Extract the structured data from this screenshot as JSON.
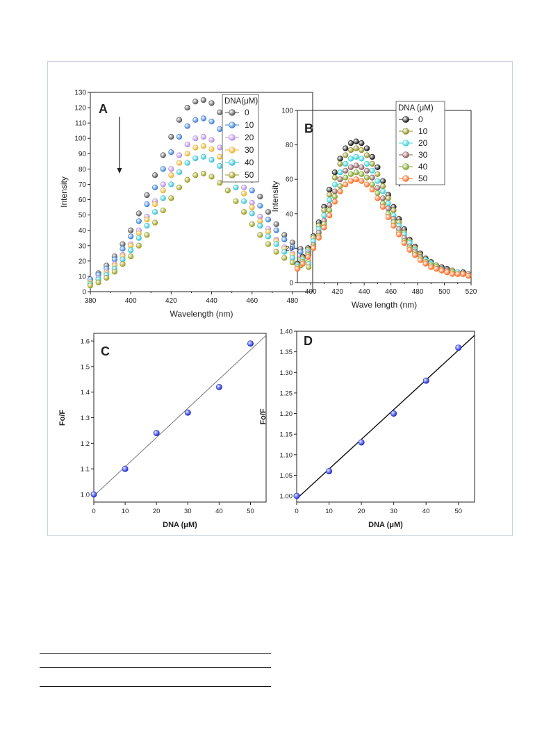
{
  "chart_data": [
    {
      "type": "scatter",
      "panel_label": "A",
      "xlabel": "Wavelength (nm)",
      "ylabel": "Intensity",
      "xlim": [
        380,
        490
      ],
      "ylim": [
        0,
        130
      ],
      "xticks": [
        380,
        400,
        420,
        440,
        460,
        480
      ],
      "yticks": [
        0,
        10,
        20,
        30,
        40,
        50,
        60,
        70,
        80,
        90,
        100,
        110,
        120,
        130
      ],
      "legend_title": "DNA(μM)",
      "legend_position": "top-right",
      "annotation": "downward arrow indicating decreasing intensity",
      "x": [
        380,
        384,
        388,
        392,
        396,
        400,
        404,
        408,
        412,
        416,
        420,
        424,
        428,
        432,
        436,
        440,
        444,
        448,
        452,
        456,
        460,
        464,
        468,
        472,
        476,
        480,
        484,
        488
      ],
      "series": [
        {
          "name": "0",
          "color": "#555555",
          "values": [
            8,
            12,
            17,
            23,
            31,
            40,
            51,
            63,
            76,
            89,
            101,
            112,
            120,
            124,
            125,
            123,
            117,
            108,
            97,
            85,
            73,
            62,
            52,
            44,
            37,
            32,
            28,
            26
          ]
        },
        {
          "name": "10",
          "color": "#3b7fd4",
          "values": [
            8,
            11,
            15,
            21,
            28,
            36,
            46,
            57,
            68,
            80,
            91,
            101,
            108,
            112,
            113,
            111,
            106,
            98,
            88,
            77,
            66,
            56,
            47,
            40,
            34,
            29,
            26,
            24
          ]
        },
        {
          "name": "20",
          "color": "#b48de0",
          "values": [
            6,
            9,
            13,
            18,
            24,
            31,
            40,
            49,
            59,
            70,
            80,
            89,
            96,
            100,
            101,
            99,
            94,
            87,
            78,
            68,
            58,
            49,
            41,
            34,
            29,
            25,
            22,
            20
          ]
        },
        {
          "name": "30",
          "color": "#e8b22c",
          "values": [
            6,
            8,
            12,
            17,
            23,
            30,
            38,
            47,
            57,
            66,
            76,
            84,
            90,
            94,
            95,
            93,
            88,
            81,
            73,
            64,
            55,
            46,
            39,
            33,
            28,
            24,
            21,
            19
          ]
        },
        {
          "name": "40",
          "color": "#35c4d2",
          "values": [
            5,
            8,
            11,
            15,
            21,
            27,
            35,
            43,
            52,
            61,
            70,
            78,
            84,
            87,
            88,
            86,
            82,
            75,
            68,
            59,
            51,
            43,
            36,
            31,
            26,
            22,
            19,
            18
          ]
        },
        {
          "name": "50",
          "color": "#9a9a1c",
          "values": [
            4,
            6,
            9,
            13,
            18,
            23,
            30,
            37,
            45,
            53,
            61,
            68,
            73,
            76,
            77,
            75,
            71,
            66,
            59,
            52,
            44,
            37,
            31,
            26,
            22,
            19,
            17,
            16
          ]
        }
      ]
    },
    {
      "type": "scatter",
      "panel_label": "B",
      "xlabel": "Wave length (nm)",
      "ylabel": "Intensity",
      "xlim": [
        390,
        520
      ],
      "ylim": [
        0,
        100
      ],
      "xticks": [
        400,
        420,
        440,
        460,
        480,
        500,
        520
      ],
      "yticks": [
        0,
        20,
        40,
        60,
        80,
        100
      ],
      "legend_title": "DNA (μM)",
      "legend_position": "top-right",
      "annotation": "downward arrow indicating decreasing intensity",
      "x": [
        390,
        394,
        398,
        402,
        406,
        410,
        414,
        418,
        422,
        426,
        430,
        434,
        438,
        442,
        446,
        450,
        454,
        458,
        462,
        466,
        470,
        474,
        478,
        482,
        486,
        490,
        494,
        498,
        502,
        506,
        510,
        514,
        518
      ],
      "series": [
        {
          "name": "0",
          "color": "#111111",
          "values": [
            11,
            15,
            20,
            27,
            35,
            44,
            54,
            64,
            72,
            78,
            81,
            82,
            81,
            78,
            73,
            67,
            59,
            51,
            44,
            37,
            31,
            25,
            21,
            17,
            14,
            12,
            10,
            9,
            8,
            7,
            6,
            6,
            5
          ]
        },
        {
          "name": "10",
          "color": "#8e8e20",
          "values": [
            10,
            14,
            19,
            26,
            33,
            42,
            51,
            61,
            69,
            74,
            77,
            78,
            77,
            74,
            69,
            63,
            56,
            49,
            42,
            35,
            29,
            24,
            20,
            16,
            13,
            11,
            10,
            8,
            7,
            7,
            6,
            5,
            5
          ]
        },
        {
          "name": "20",
          "color": "#38d0d8",
          "values": [
            10,
            13,
            18,
            24,
            31,
            39,
            48,
            57,
            64,
            69,
            72,
            73,
            72,
            69,
            65,
            59,
            53,
            46,
            39,
            33,
            28,
            23,
            19,
            15,
            13,
            11,
            9,
            8,
            7,
            6,
            6,
            5,
            5
          ]
        },
        {
          "name": "30",
          "color": "#8a5c5c",
          "values": [
            9,
            12,
            17,
            22,
            29,
            36,
            45,
            53,
            60,
            65,
            67,
            68,
            67,
            65,
            61,
            55,
            49,
            43,
            37,
            31,
            26,
            21,
            18,
            15,
            12,
            10,
            9,
            8,
            7,
            6,
            5,
            5,
            5
          ]
        },
        {
          "name": "40",
          "color": "#7ea02a",
          "values": [
            9,
            12,
            16,
            21,
            27,
            34,
            42,
            50,
            56,
            61,
            63,
            64,
            63,
            61,
            57,
            52,
            46,
            40,
            35,
            29,
            24,
            20,
            17,
            14,
            12,
            10,
            9,
            7,
            6,
            6,
            5,
            5,
            4
          ]
        },
        {
          "name": "50",
          "color": "#ff6a1f",
          "values": [
            8,
            11,
            15,
            20,
            26,
            32,
            39,
            47,
            53,
            57,
            59,
            60,
            59,
            57,
            54,
            49,
            44,
            38,
            33,
            28,
            23,
            19,
            16,
            13,
            11,
            9,
            8,
            7,
            6,
            5,
            5,
            5,
            4
          ]
        }
      ]
    },
    {
      "type": "scatter",
      "panel_label": "C",
      "xlabel": "DNA (μM)",
      "ylabel": "Fo/F",
      "xlim": [
        0,
        55
      ],
      "ylim": [
        0.97,
        1.63
      ],
      "xticks": [
        0,
        10,
        20,
        30,
        40,
        50
      ],
      "yticks": [
        "1.0",
        "1.1",
        "1.2",
        "1.3",
        "1.4",
        "1.5",
        "1.6"
      ],
      "point_color": "#1d2bd6",
      "fit_line_color": "#777777",
      "x": [
        0,
        10,
        20,
        30,
        40,
        50
      ],
      "values": [
        1.0,
        1.1,
        1.24,
        1.32,
        1.42,
        1.59
      ],
      "fit_line": {
        "x": [
          0,
          55
        ],
        "y": [
          0.994,
          1.622
        ]
      }
    },
    {
      "type": "scatter",
      "panel_label": "D",
      "xlabel": "DNA (μM)",
      "ylabel": "Fo/F",
      "xlim": [
        0,
        55
      ],
      "ylim": [
        0.985,
        1.4
      ],
      "xticks": [
        0,
        10,
        20,
        30,
        40,
        50
      ],
      "yticks": [
        "1.00",
        "1.05",
        "1.10",
        "1.15",
        "1.20",
        "1.25",
        "1.30",
        "1.35",
        "1.40"
      ],
      "point_color": "#1d2bd6",
      "fit_line_color": "#111111",
      "x": [
        0,
        10,
        20,
        30,
        40,
        50
      ],
      "values": [
        1.0,
        1.06,
        1.13,
        1.2,
        1.28,
        1.36
      ],
      "fit_line": {
        "x": [
          0,
          55
        ],
        "y": [
          0.993,
          1.39
        ]
      }
    }
  ]
}
